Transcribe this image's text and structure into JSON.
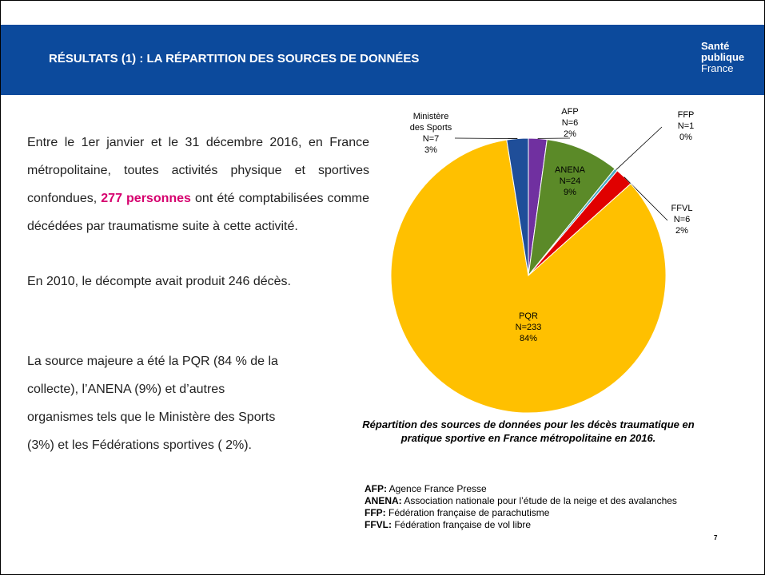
{
  "header": {
    "title": "RÉSULTATS (1) : LA RÉPARTITION DES SOURCES DE DONNÉES",
    "logo": [
      "Santé",
      "publique",
      "France"
    ]
  },
  "intro": {
    "before": "Entre le 1er janvier et le 31 décembre 2016, en France métropolitaine, toutes activités physique et sportives confondues, ",
    "highlight": "277 personnes",
    "after": " ont été comptabilisées comme décédées par traumatisme suite à cette activité."
  },
  "comparison": "En 2010, le décompte avait produit 246 décès.",
  "summary": "La source majeure a été la PQR (84 % de la collecte), l’ANENA (9%) et d’autres organismes tels que le Ministère des Sports (3%) et les Fédérations sportives ( 2%).",
  "chart_data": {
    "type": "pie",
    "categories": [
      "AFP",
      "ANENA",
      "FFP",
      "FFVL",
      "PQR",
      "Ministère des Sports"
    ],
    "values": [
      6,
      24,
      1,
      6,
      233,
      7
    ],
    "value_labels": [
      "N=6",
      "N=24",
      "N=1",
      "N=6",
      "N=233",
      "N=7"
    ],
    "percentages": [
      2,
      9,
      0,
      2,
      84,
      3
    ],
    "percentage_labels": [
      "2%",
      "9%",
      "0%",
      "2%",
      "84%",
      "3%"
    ],
    "colors": [
      "#7030a0",
      "#5b8a28",
      "#4bacc6",
      "#e00000",
      "#ffc000",
      "#1f4e99"
    ],
    "caption": "Répartition des sources de données pour les décès traumatique en pratique sportive en France métropolitaine en 2016."
  },
  "glossary": [
    {
      "term": "AFP:",
      "definition": "Agence France Presse"
    },
    {
      "term": "ANENA:",
      "definition": "Association nationale pour l’étude de la neige et des avalanches"
    },
    {
      "term": "FFP:",
      "definition": "Fédération française de parachutisme"
    },
    {
      "term": "FFVL:",
      "definition": "Fédération française de vol libre"
    }
  ],
  "page_number": 7
}
